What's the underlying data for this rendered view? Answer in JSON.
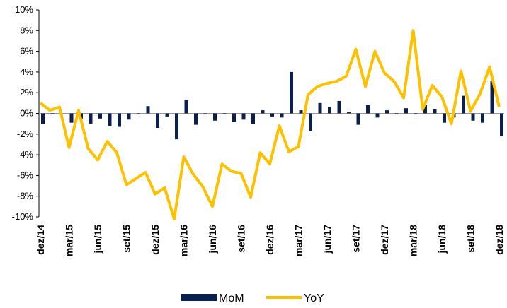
{
  "chart_data": {
    "type": "bar-line",
    "categories": [
      "dez/14",
      null,
      null,
      "mar/15",
      null,
      null,
      "jun/15",
      null,
      null,
      "set/15",
      null,
      null,
      "dez/15",
      null,
      null,
      "mar/16",
      null,
      null,
      "jun/16",
      null,
      null,
      "set/16",
      null,
      null,
      "dez/16",
      null,
      null,
      "mar/17",
      null,
      null,
      "jun/17",
      null,
      null,
      "set/17",
      null,
      null,
      "dez/17",
      null,
      null,
      "mar/18",
      null,
      null,
      "jun/18",
      null,
      null,
      "set/18",
      null,
      null,
      "dez/18"
    ],
    "series": [
      {
        "name": "MoM",
        "type": "bar",
        "color": "#0b1f4e",
        "values": [
          -1.0,
          -0.1,
          0.0,
          -0.9,
          -0.5,
          -1.0,
          -0.5,
          -1.2,
          -1.3,
          -0.6,
          -0.1,
          0.7,
          -1.4,
          -0.3,
          -2.5,
          1.3,
          -1.1,
          -0.1,
          -0.7,
          -0.1,
          -0.8,
          -0.6,
          -1.0,
          0.3,
          -0.3,
          -0.4,
          4.0,
          0.3,
          -1.7,
          1.0,
          0.6,
          1.2,
          0.1,
          -1.1,
          0.8,
          -0.4,
          0.3,
          -0.1,
          0.5,
          -0.1,
          0.8,
          0.4,
          -0.9,
          -0.4,
          1.7,
          -0.7,
          -0.9,
          3.1,
          -2.2
        ]
      },
      {
        "name": "YoY",
        "type": "line",
        "color": "#ffc000",
        "values": [
          1.0,
          0.3,
          0.6,
          -3.3,
          0.3,
          -3.4,
          -4.5,
          -2.7,
          -3.8,
          -6.9,
          -6.3,
          -5.7,
          -7.8,
          -7.2,
          -10.2,
          -4.2,
          -5.9,
          -7.1,
          -9.0,
          -4.9,
          -5.6,
          -5.8,
          -8.1,
          -3.8,
          -4.9,
          -1.2,
          -3.7,
          -3.2,
          1.8,
          2.6,
          2.9,
          3.1,
          3.6,
          6.2,
          2.6,
          6.0,
          3.9,
          3.1,
          1.5,
          8.0,
          0.4,
          2.7,
          1.6,
          -1.0,
          4.1,
          0.2,
          1.9,
          4.5,
          0.6
        ]
      }
    ],
    "ylim": [
      -10,
      10
    ],
    "yticks": [
      {
        "value": -10,
        "label": "-10%"
      },
      {
        "value": -8,
        "label": "-8%"
      },
      {
        "value": -6,
        "label": "-6%"
      },
      {
        "value": -4,
        "label": "-4%"
      },
      {
        "value": -2,
        "label": "-2%"
      },
      {
        "value": 0,
        "label": "0%"
      },
      {
        "value": 2,
        "label": "2%"
      },
      {
        "value": 4,
        "label": "4%"
      },
      {
        "value": 6,
        "label": "6%"
      },
      {
        "value": 8,
        "label": "8%"
      },
      {
        "value": 10,
        "label": "10%"
      }
    ],
    "legend": "bottom"
  }
}
